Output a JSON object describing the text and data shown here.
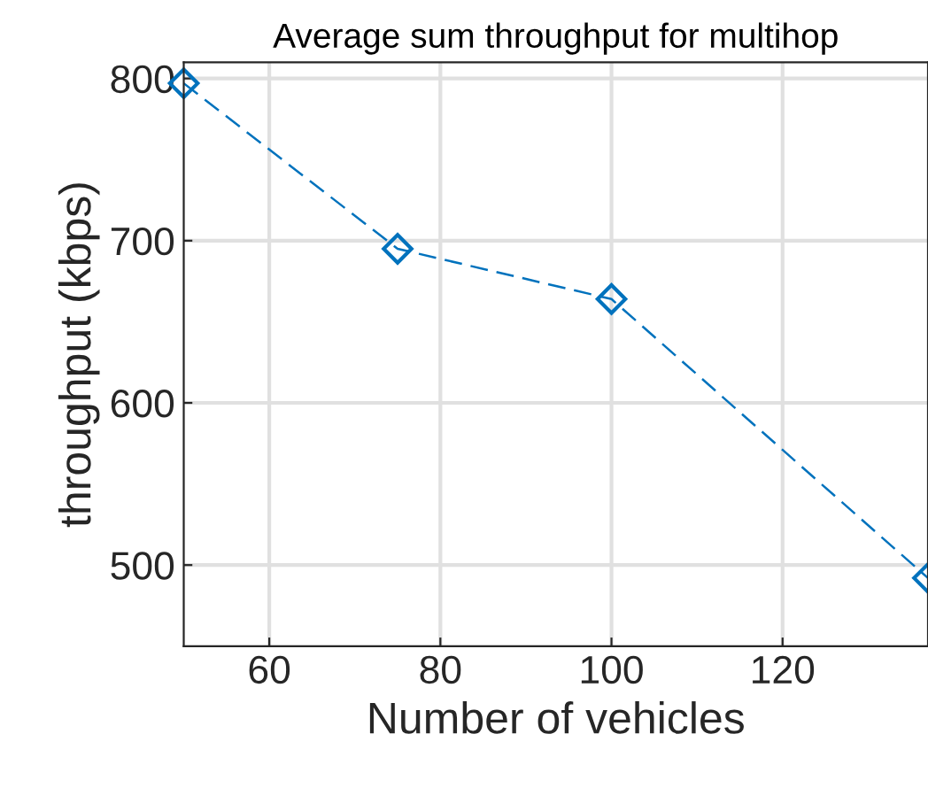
{
  "chart_data": {
    "type": "line",
    "title": "Average sum throughput for multihop",
    "xlabel": "Number of vehicles",
    "ylabel": "throughput (kbps)",
    "x": [
      50,
      75,
      100,
      137
    ],
    "series": [
      {
        "color": "#0072bd",
        "values": [
          797,
          695,
          664,
          492
        ]
      }
    ],
    "xlim": [
      50,
      137
    ],
    "xticks": [
      60,
      80,
      100,
      120
    ],
    "ylim": [
      450,
      810
    ],
    "yticks": [
      500,
      600,
      700,
      800
    ],
    "grid": true,
    "marker": "diamond",
    "line_style": "dashed"
  }
}
